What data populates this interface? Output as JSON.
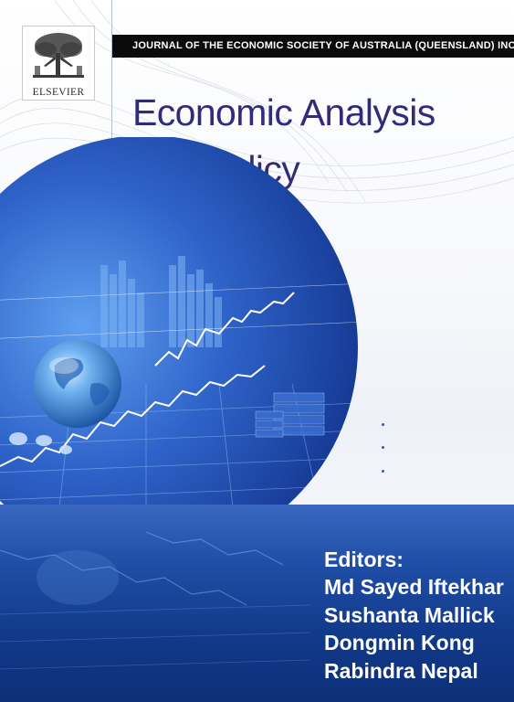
{
  "publisher": {
    "name": "ELSEVIER"
  },
  "journal": {
    "society_line": "JOURNAL OF THE ECONOMIC SOCIETY OF AUSTRALIA (QUEENSLAND) INC.",
    "title_line1": "Economic Analysis",
    "title_line2": "and Policy"
  },
  "editors": {
    "heading": "Editors:",
    "names": [
      "Md Sayed Iftekhar",
      "Sushanta Mallick",
      "Dongmin Kong",
      "Rabindra Nepal"
    ]
  },
  "colors": {
    "title": "#332b7a",
    "band": "#123a8a",
    "bar": "#0b0b0b"
  },
  "icons": [
    "elsevier-tree-icon",
    "globe-icon"
  ]
}
